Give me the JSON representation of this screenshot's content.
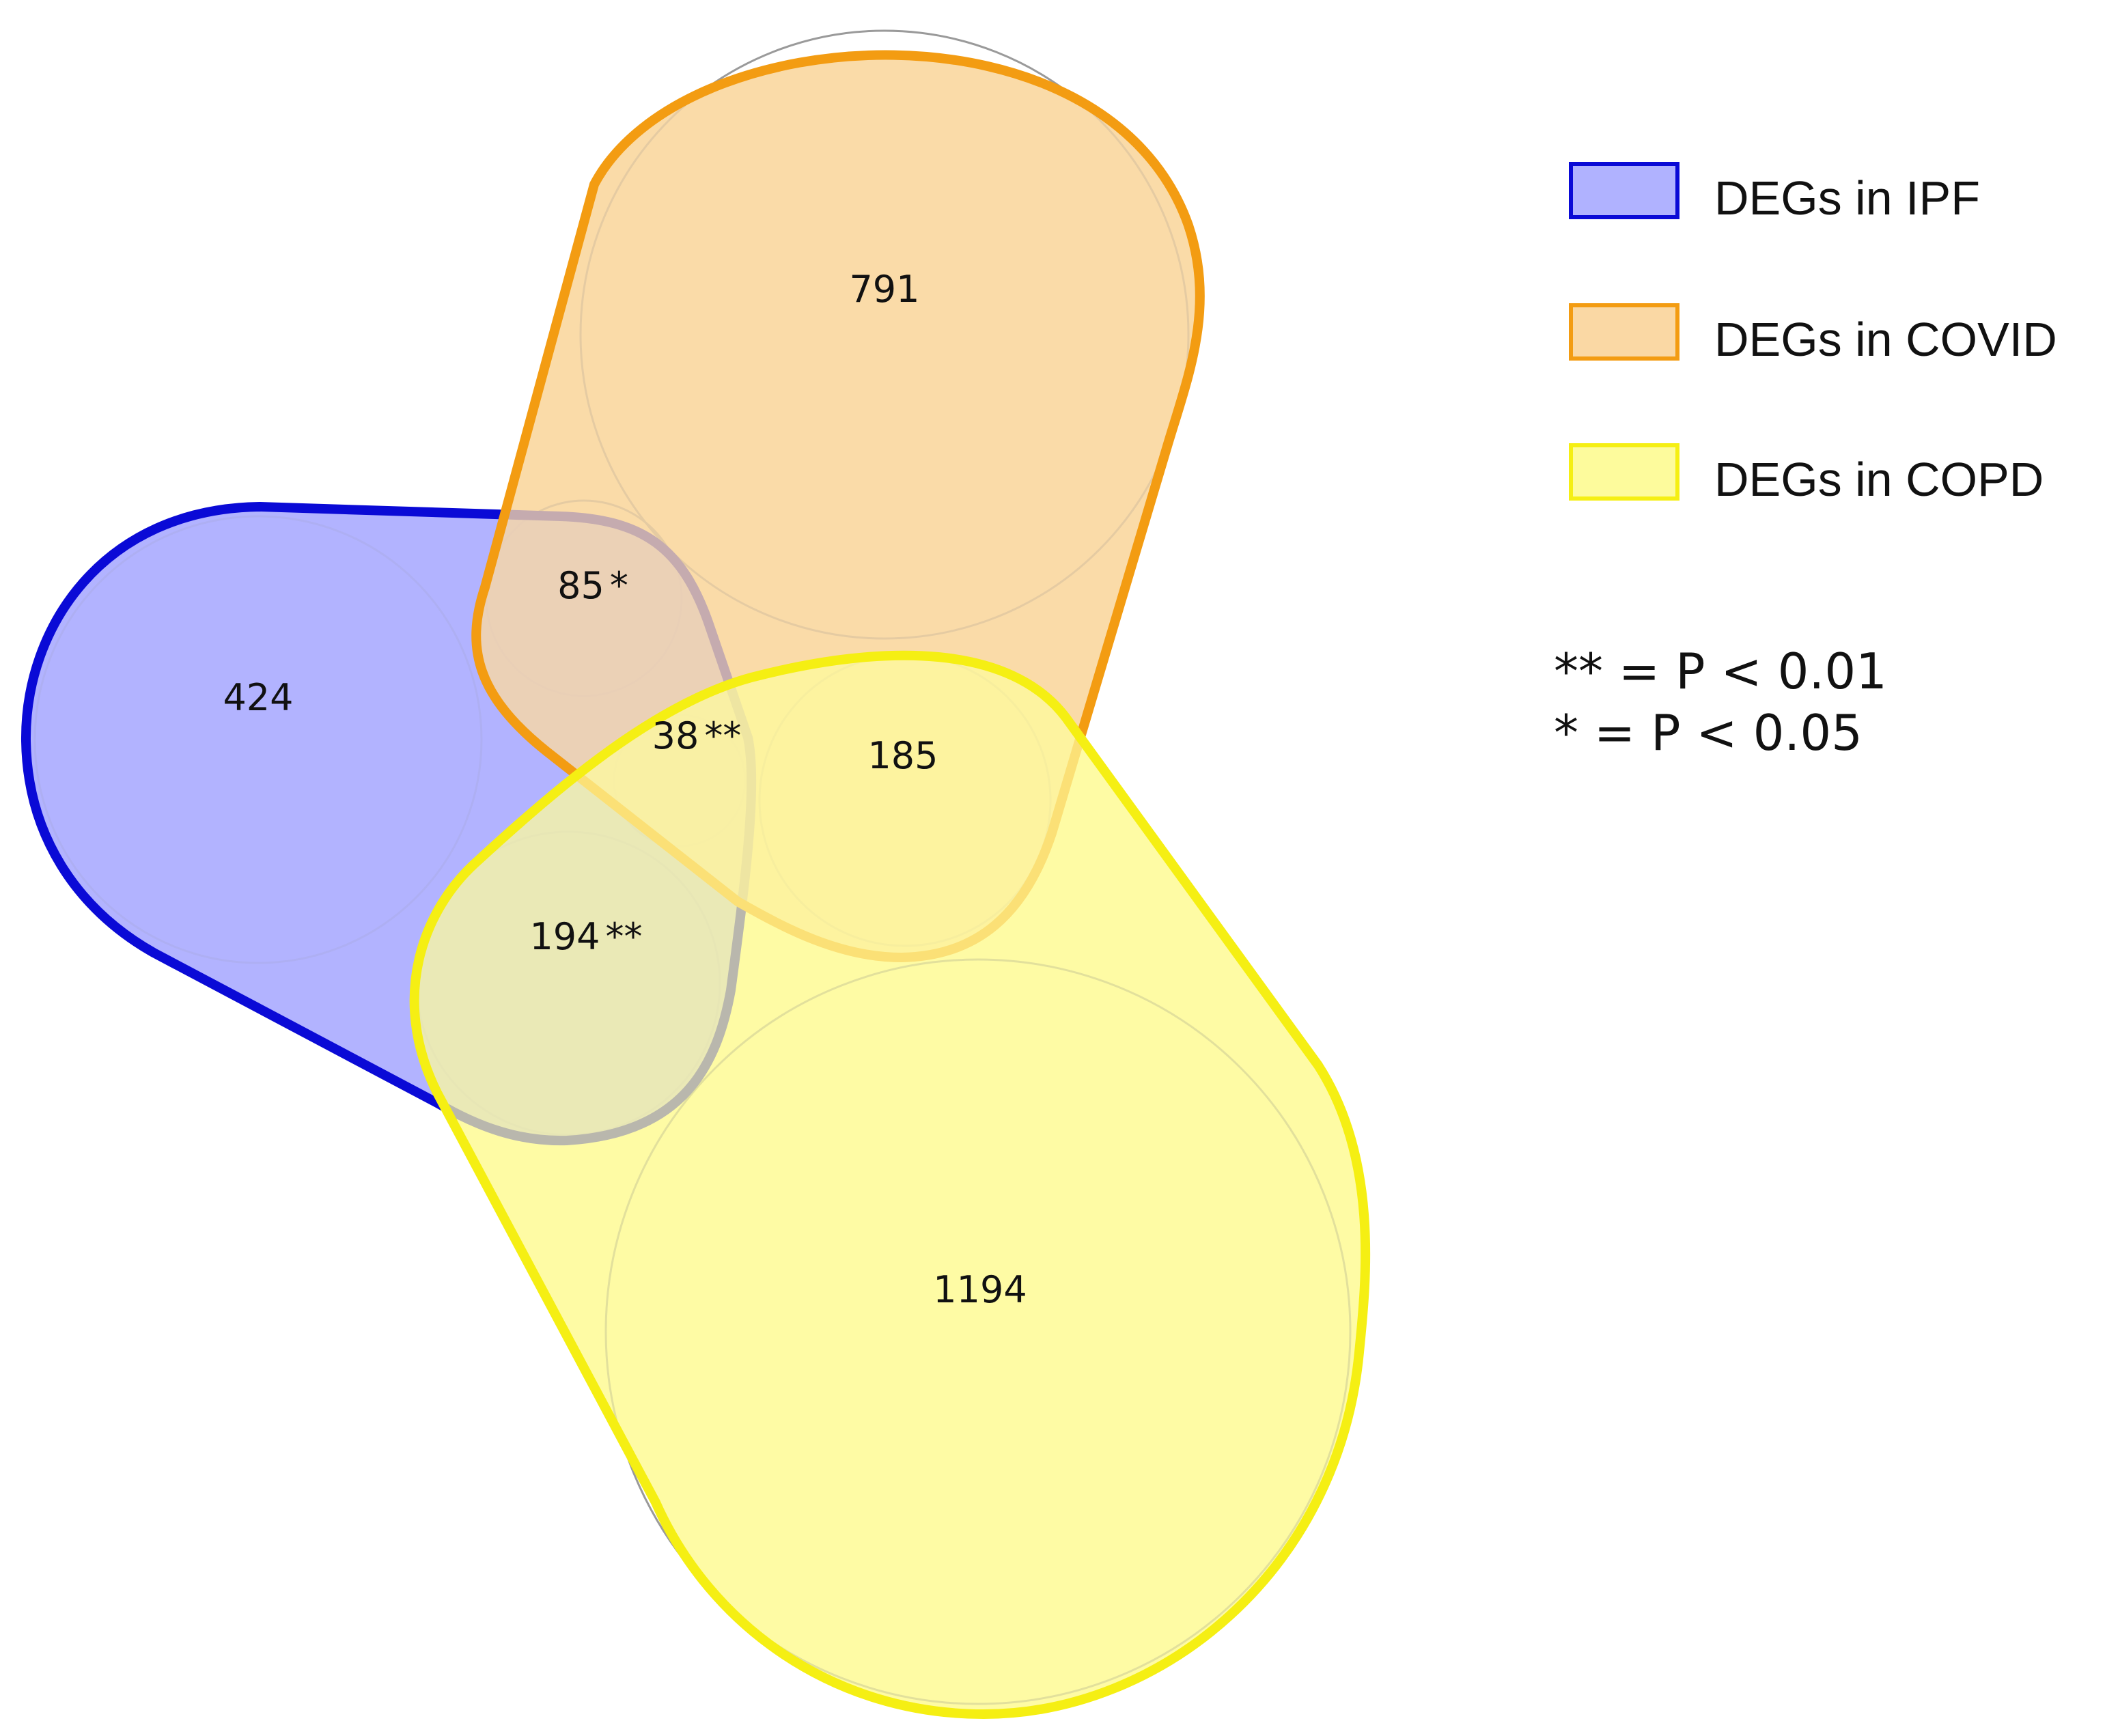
{
  "chart_data": {
    "type": "venn",
    "sets": [
      {
        "name": "DEGs in IPF",
        "fill": "#b0b2ff",
        "stroke": "#0a0ad6"
      },
      {
        "name": "DEGs in COVID",
        "fill": "#fbdeb0",
        "stroke": "#f39c12"
      },
      {
        "name": "DEGs in COPD",
        "fill": "#fdfbaa",
        "stroke": "#f5ef13"
      }
    ],
    "regions": [
      {
        "sets": [
          "DEGs in IPF"
        ],
        "count": "424",
        "mark": ""
      },
      {
        "sets": [
          "DEGs in COVID"
        ],
        "count": "791",
        "mark": ""
      },
      {
        "sets": [
          "DEGs in COPD"
        ],
        "count": "1194",
        "mark": ""
      },
      {
        "sets": [
          "DEGs in IPF",
          "DEGs in COVID"
        ],
        "count": "85",
        "mark": "*"
      },
      {
        "sets": [
          "DEGs in IPF",
          "DEGs in COPD"
        ],
        "count": "194",
        "mark": "**"
      },
      {
        "sets": [
          "DEGs in COVID",
          "DEGs in COPD"
        ],
        "count": "185",
        "mark": ""
      },
      {
        "sets": [
          "DEGs in IPF",
          "DEGs in COVID",
          "DEGs in COPD"
        ],
        "count": "38",
        "mark": "**"
      }
    ],
    "significance_notes": [
      "** = P < 0.01",
      "* = P < 0.05"
    ],
    "legend_position": "top-right"
  }
}
